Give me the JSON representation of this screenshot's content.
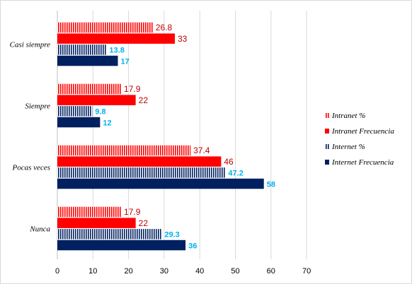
{
  "chart_data": {
    "type": "bar",
    "orientation": "horizontal",
    "categories": [
      "Casi siempre",
      "Siempre",
      "Pocas veces",
      "Nunca"
    ],
    "series": [
      {
        "name": "Intranet %",
        "values": [
          26.8,
          17.9,
          37.4,
          17.9
        ],
        "color": "#ff0000",
        "pattern": "vertical-stripes"
      },
      {
        "name": "Intranet Frecuencia",
        "values": [
          33,
          22,
          46,
          22
        ],
        "color": "#ff0000",
        "pattern": "solid"
      },
      {
        "name": "Internet %",
        "values": [
          13.8,
          9.8,
          47.2,
          29.3
        ],
        "color": "#002060",
        "pattern": "vertical-stripes"
      },
      {
        "name": "Internet Frecuencia",
        "values": [
          17,
          12,
          58,
          36
        ],
        "color": "#002060",
        "pattern": "solid"
      }
    ],
    "x_ticks": [
      "0",
      "10",
      "20",
      "30",
      "40",
      "50",
      "60",
      "70"
    ],
    "xlim": [
      0,
      70
    ],
    "grid": "vertical",
    "legend_position": "right",
    "data_labels": true,
    "colors": {
      "red_label": "#c00000",
      "blue_label": "#00b0f0",
      "grid": "#d9d9d9"
    }
  }
}
